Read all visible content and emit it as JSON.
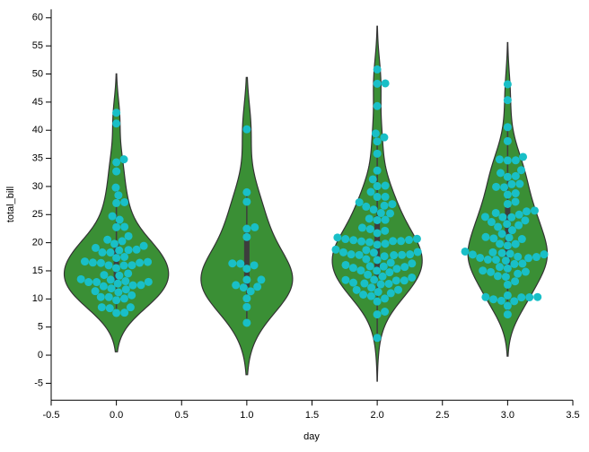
{
  "chart_data": {
    "type": "violin",
    "xlabel": "day",
    "ylabel": "total_bill",
    "xlim": [
      -0.5,
      3.5
    ],
    "xticks": [
      -0.5,
      {
        "value": 0,
        "label": "0.0"
      },
      0.5,
      {
        "value": 1,
        "label": "1.0"
      },
      1.5,
      {
        "value": 2,
        "label": "2.0"
      },
      2.5,
      {
        "value": 3,
        "label": "3.0"
      },
      3.5
    ],
    "ylim": [
      -8,
      61.5
    ],
    "yticks": [
      -5,
      0,
      5,
      10,
      15,
      20,
      25,
      30,
      35,
      40,
      45,
      50,
      55,
      60
    ],
    "violin_color": "#3a8f35",
    "point_color": "#19bfc7",
    "groups": [
      {
        "x": 0,
        "values": [
          27.2,
          22.76,
          17.29,
          19.44,
          16.66,
          10.07,
          32.68,
          15.98,
          34.83,
          13.03,
          18.28,
          24.71,
          21.16,
          10.65,
          12.43,
          24.08,
          11.69,
          13.42,
          14.26,
          15.95,
          12.48,
          29.8,
          8.52,
          14.52,
          11.38,
          22.82,
          19.08,
          20.27,
          11.17,
          12.26,
          18.26,
          8.51,
          10.33,
          14.15,
          16.0,
          13.16,
          17.47,
          34.3,
          41.19,
          27.05,
          16.43,
          8.35,
          18.64,
          11.87,
          9.78,
          7.51,
          19.81,
          28.44,
          15.48,
          16.58,
          7.56,
          10.34,
          43.11,
          13.0,
          13.51,
          18.71,
          12.74,
          13.0,
          16.4,
          20.53,
          16.47,
          18.78
        ]
      },
      {
        "x": 1,
        "values": [
          28.97,
          22.49,
          5.75,
          16.32,
          22.75,
          40.17,
          27.28,
          12.03,
          21.01,
          12.46,
          11.35,
          15.38,
          12.16,
          13.42,
          8.58,
          15.98,
          13.42,
          16.27,
          10.09
        ]
      },
      {
        "x": 2,
        "values": [
          20.65,
          17.92,
          20.29,
          15.77,
          39.42,
          19.82,
          17.81,
          13.37,
          12.69,
          21.7,
          19.65,
          9.55,
          18.35,
          15.06,
          20.69,
          17.78,
          24.06,
          16.31,
          16.93,
          18.69,
          31.27,
          16.04,
          38.01,
          26.41,
          11.24,
          48.27,
          20.29,
          13.81,
          11.02,
          18.29,
          17.59,
          20.08,
          16.45,
          3.07,
          20.23,
          15.01,
          12.02,
          17.07,
          26.86,
          25.28,
          14.73,
          10.51,
          17.92,
          44.3,
          22.42,
          20.92,
          15.36,
          20.49,
          25.21,
          18.24,
          14.31,
          14.0,
          7.25,
          50.81,
          15.81,
          38.73,
          24.27,
          12.76,
          30.06,
          25.89,
          48.33,
          13.27,
          28.17,
          12.9,
          28.15,
          11.59,
          7.74,
          30.14,
          20.45,
          13.28,
          22.12,
          24.01,
          15.69,
          11.61,
          10.77,
          15.53,
          10.07,
          12.6,
          32.83,
          35.83,
          29.03,
          27.18,
          22.67,
          17.82,
          18.78,
          13.42,
          26.59
        ]
      },
      {
        "x": 3,
        "values": [
          16.99,
          10.34,
          21.01,
          23.68,
          24.59,
          25.29,
          8.77,
          26.88,
          15.04,
          14.78,
          10.27,
          35.26,
          15.42,
          18.43,
          14.83,
          21.58,
          10.33,
          16.29,
          16.97,
          17.46,
          13.94,
          9.68,
          30.4,
          18.29,
          22.23,
          32.4,
          28.55,
          18.04,
          12.54,
          10.29,
          34.81,
          9.94,
          25.56,
          19.49,
          48.17,
          45.35,
          40.55,
          38.07,
          31.85,
          34.63,
          34.65,
          23.33,
          23.95,
          25.71,
          17.31,
          29.93,
          14.07,
          13.13,
          17.26,
          24.55,
          19.77,
          29.85,
          20.65,
          17.92,
          20.76,
          27.28,
          7.25,
          20.9,
          30.46,
          18.15,
          23.1,
          15.69,
          19.81,
          28.79,
          16.21,
          17.51,
          24.52,
          22.82,
          16.82,
          32.9,
          17.89,
          14.48,
          9.6,
          31.71,
          10.63,
          25.0
        ]
      }
    ]
  }
}
